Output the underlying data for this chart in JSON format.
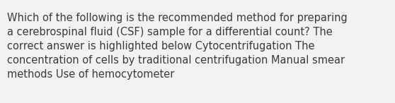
{
  "text": "Which of the following is the recommended method for preparing\na cerebrospinal fluid (CSF) sample for a differential count? The\ncorrect answer is highlighted below Cytocentrifugation The\nconcentration of cells by traditional centrifugation Manual smear\nmethods Use of hemocytometer",
  "background_color": "#f2f2f2",
  "text_color": "#3a3a3a",
  "font_size": 10.5,
  "fig_width": 5.58,
  "fig_height": 1.46,
  "dpi": 100
}
